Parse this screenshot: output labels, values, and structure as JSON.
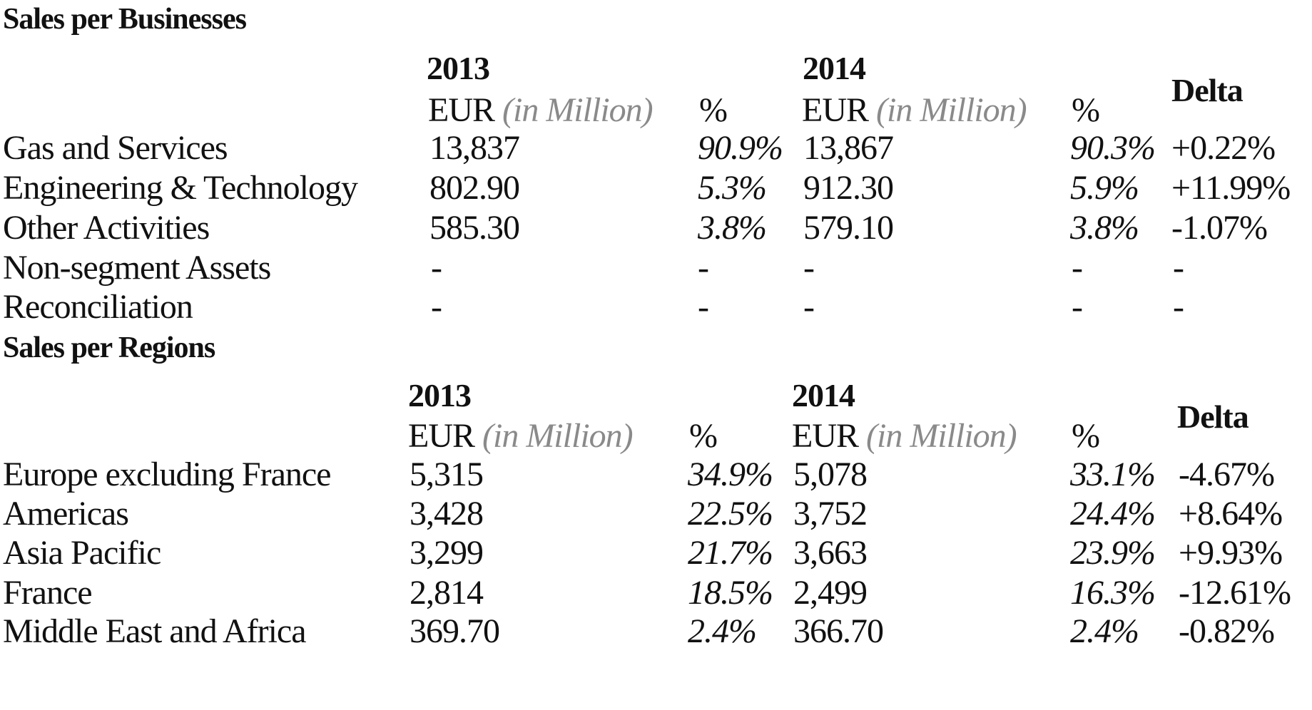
{
  "tables": [
    {
      "title": "Sales per Businesses",
      "headers": {
        "year_2013": "2013",
        "year_2014": "2014",
        "eur_2013": "EUR",
        "unit_2013": "(in Million)",
        "pct_2013": "%",
        "eur_2014": "EUR",
        "unit_2014": "(in Million)",
        "pct_2014": "%",
        "delta": "Delta"
      },
      "rows": [
        {
          "label": "Gas and Services",
          "v2013": "13,837",
          "p2013": "90.9%",
          "v2014": "13,867",
          "p2014": "90.3%",
          "delta": "+0.22%"
        },
        {
          "label": "Engineering & Technology",
          "v2013": "802.90",
          "p2013": "5.3%",
          "v2014": "912.30",
          "p2014": "5.9%",
          "delta": "+11.99%"
        },
        {
          "label": "Other Activities",
          "v2013": "585.30",
          "p2013": "3.8%",
          "v2014": "579.10",
          "p2014": "3.8%",
          "delta": "-1.07%"
        },
        {
          "label": "Non-segment Assets",
          "v2013": "-",
          "p2013": "-",
          "v2014": "-",
          "p2014": "-",
          "delta": "-"
        },
        {
          "label": "Reconciliation",
          "v2013": "-",
          "p2013": "-",
          "v2014": "-",
          "p2014": "-",
          "delta": "-"
        }
      ]
    },
    {
      "title": "Sales per Regions",
      "headers": {
        "year_2013": "2013",
        "year_2014": "2014",
        "eur_2013": "EUR",
        "unit_2013": "(in Million)",
        "pct_2013": "%",
        "eur_2014": "EUR",
        "unit_2014": "(in Million)",
        "pct_2014": "%",
        "delta": "Delta"
      },
      "rows": [
        {
          "label": "Europe excluding France",
          "v2013": "5,315",
          "p2013": "34.9%",
          "v2014": "5,078",
          "p2014": "33.1%",
          "delta": "-4.67%"
        },
        {
          "label": "Americas",
          "v2013": "3,428",
          "p2013": "22.5%",
          "v2014": "3,752",
          "p2014": "24.4%",
          "delta": "+8.64%"
        },
        {
          "label": "Asia Pacific",
          "v2013": "3,299",
          "p2013": "21.7%",
          "v2014": "3,663",
          "p2014": "23.9%",
          "delta": "+9.93%"
        },
        {
          "label": "France",
          "v2013": "2,814",
          "p2013": "18.5%",
          "v2014": "2,499",
          "p2014": "16.3%",
          "delta": "-12.61%"
        },
        {
          "label": "Middle East and Africa",
          "v2013": "369.70",
          "p2013": "2.4%",
          "v2014": "366.70",
          "p2014": "2.4%",
          "delta": "-0.82%"
        }
      ]
    }
  ]
}
